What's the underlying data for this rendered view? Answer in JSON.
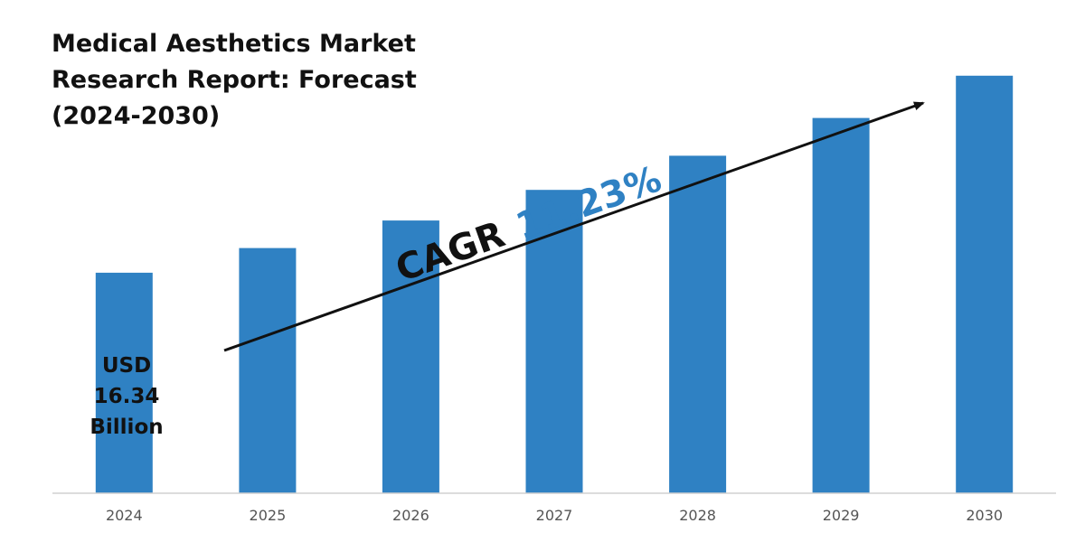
{
  "chart_data": {
    "type": "bar",
    "title_lines": [
      "Medical Aesthetics Market",
      "Research Report: Forecast",
      "(2024-2030)"
    ],
    "categories": [
      "2024",
      "2025",
      "2026",
      "2027",
      "2028",
      "2029",
      "2030"
    ],
    "values": [
      16.34,
      18.17,
      20.21,
      22.48,
      25.01,
      27.81,
      30.94
    ],
    "annotation": {
      "lines": [
        "USD",
        "16.34",
        "Billion"
      ]
    },
    "cagr": {
      "label": "CAGR",
      "value": "11.23%"
    },
    "ylim": [
      0,
      32
    ],
    "grid": false,
    "colors": {
      "bar": "#2f81c3",
      "accent": "#2f81c3",
      "axis": "#d0d0d0",
      "arrow": "#111111"
    }
  }
}
